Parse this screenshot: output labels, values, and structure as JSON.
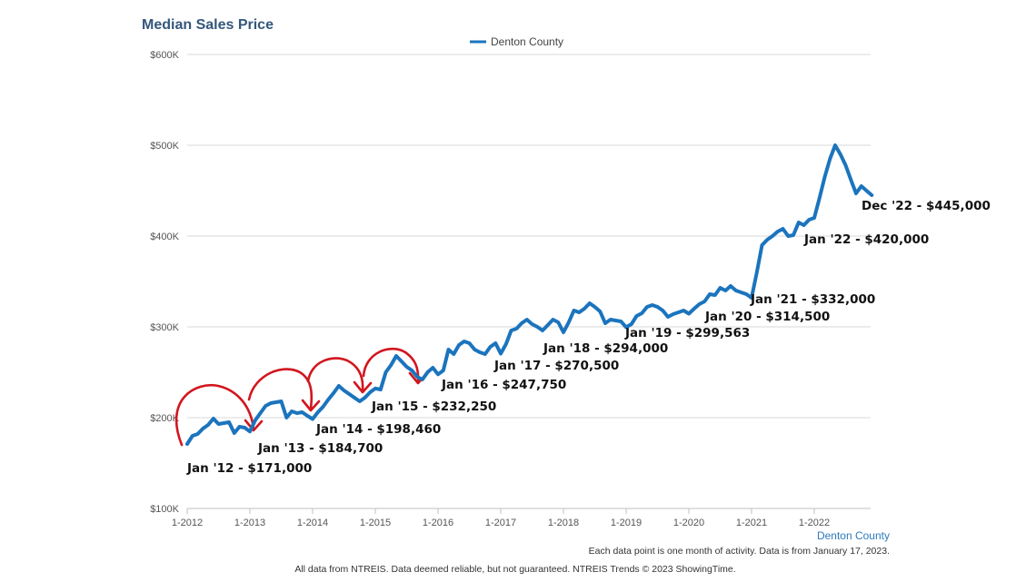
{
  "chart_data": {
    "type": "line",
    "title": "Median Sales Price",
    "legend": "top-center",
    "grid": true,
    "xlabel": "",
    "ylabel": "",
    "x_axis_name": "Denton County",
    "ylim": [
      100000,
      600000
    ],
    "y_ticks": [
      {
        "value": 100000,
        "label": "$100K"
      },
      {
        "value": 200000,
        "label": "$200K"
      },
      {
        "value": 300000,
        "label": "$300K"
      },
      {
        "value": 400000,
        "label": "$400K"
      },
      {
        "value": 500000,
        "label": "$500K"
      },
      {
        "value": 600000,
        "label": "$600K"
      }
    ],
    "x_ticks": [
      "1-2012",
      "1-2013",
      "1-2014",
      "1-2015",
      "1-2016",
      "1-2017",
      "1-2018",
      "1-2019",
      "1-2020",
      "1-2021",
      "1-2022"
    ],
    "series": [
      {
        "name": "Denton County",
        "color": "#1b74bd",
        "start": "1-2012",
        "interval": "month",
        "values": [
          171000,
          180000,
          182000,
          188000,
          192000,
          199000,
          193000,
          194000,
          195000,
          183000,
          190000,
          189000,
          184700,
          197000,
          205000,
          213000,
          216000,
          217000,
          218000,
          200000,
          207000,
          205000,
          206000,
          202000,
          198460,
          206000,
          212000,
          220000,
          227000,
          235000,
          230000,
          226000,
          222000,
          218000,
          222000,
          228000,
          232250,
          231000,
          250000,
          258000,
          268000,
          262000,
          256000,
          252000,
          245000,
          242000,
          250000,
          255000,
          247750,
          252000,
          275000,
          270000,
          280000,
          284000,
          282000,
          275000,
          272000,
          270000,
          278000,
          282000,
          270500,
          281000,
          296000,
          298000,
          304000,
          308000,
          303000,
          300000,
          296000,
          302000,
          308000,
          305000,
          294000,
          305000,
          318000,
          316000,
          320000,
          326000,
          322000,
          317000,
          304000,
          308000,
          307000,
          306000,
          299563,
          303000,
          312000,
          315000,
          322000,
          324000,
          322000,
          318000,
          311000,
          314000,
          316000,
          318000,
          314500,
          320000,
          325000,
          328000,
          336000,
          335000,
          343000,
          340000,
          345000,
          340000,
          338000,
          336000,
          332000,
          360000,
          390000,
          396000,
          400000,
          405000,
          408000,
          400000,
          401000,
          415000,
          412000,
          418000,
          420000,
          442000,
          465000,
          485000,
          500000,
          490000,
          478000,
          462000,
          447000,
          455000,
          450000,
          445000
        ]
      }
    ],
    "annotations": [
      {
        "text": "Jan '12 - $171,000"
      },
      {
        "text": "Jan '13 - $184,700"
      },
      {
        "text": "Jan '14 - $198,460"
      },
      {
        "text": "Jan '15 - $232,250"
      },
      {
        "text": "Jan '16 - $247,750"
      },
      {
        "text": "Jan '17 - $270,500"
      },
      {
        "text": "Jan '18 - $294,000"
      },
      {
        "text": "Jan '19 - $299,563"
      },
      {
        "text": "Jan '20 - $314,500"
      },
      {
        "text": "Jan '21 - $332,000"
      },
      {
        "text": "Jan '22 - $420,000"
      },
      {
        "text": "Dec '22 - $445,000"
      }
    ],
    "arrow_color": "#d2161e"
  },
  "footnote": "Each data point is one month of activity. Data is from January 17, 2023.",
  "source_note": "All data from NTREIS. Data deemed reliable, but not guaranteed. NTREIS Trends © 2023 ShowingTime."
}
